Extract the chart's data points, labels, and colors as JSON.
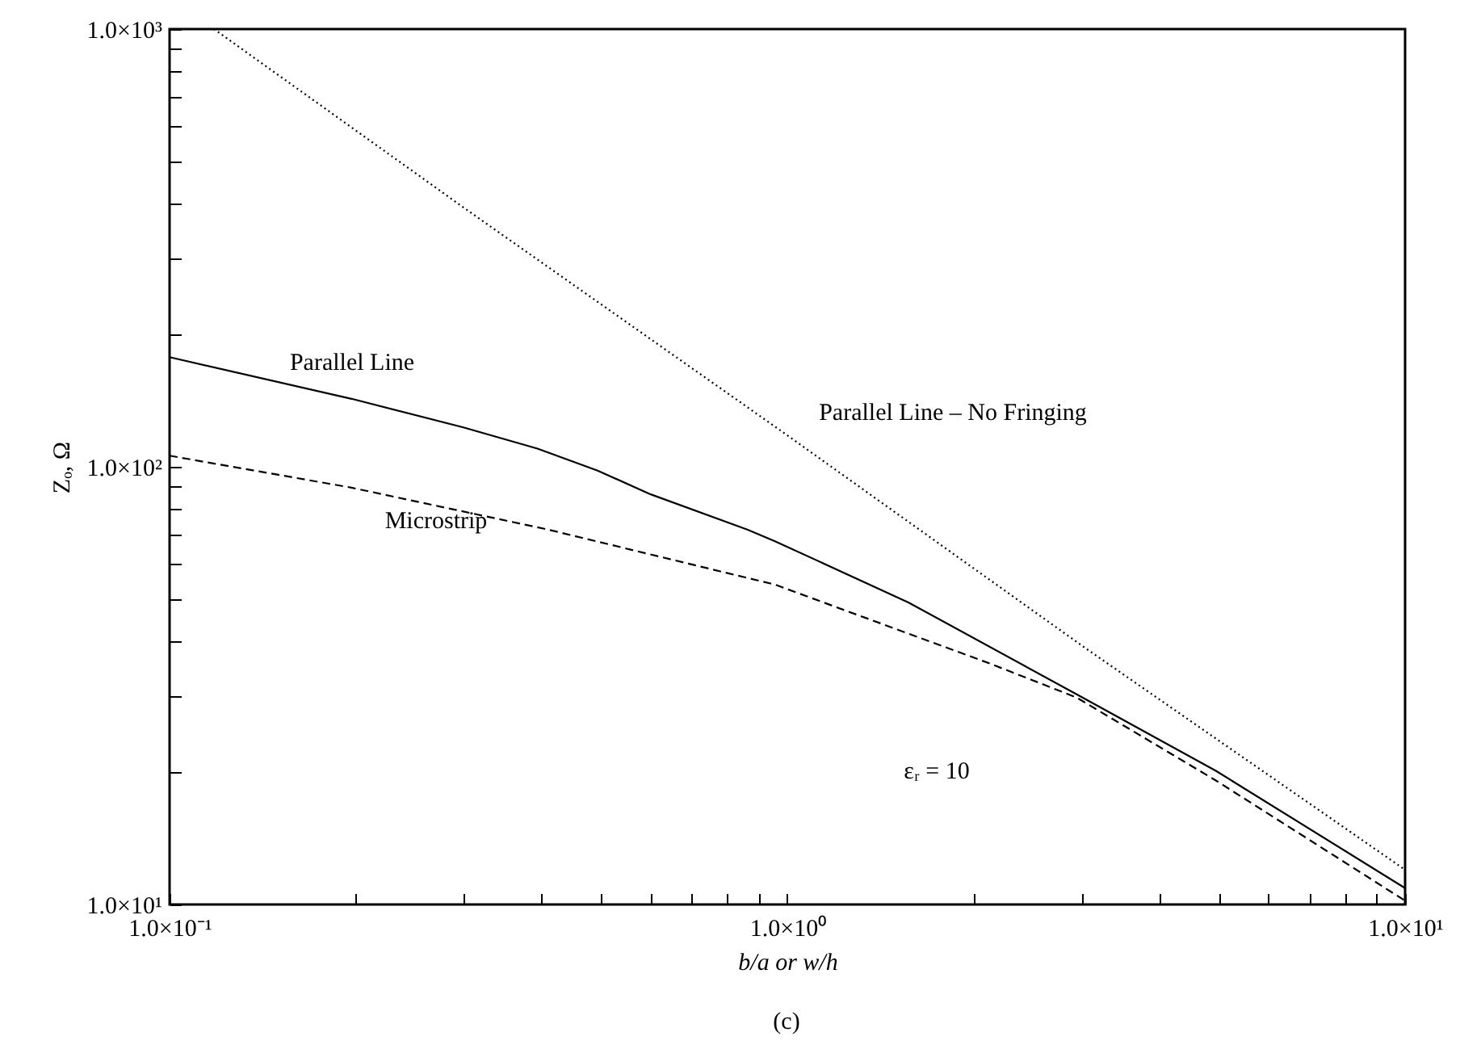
{
  "chart_data": {
    "type": "line",
    "xlabel": "b/a or w/h",
    "ylabel": "Zₒ, Ω",
    "log": "xy",
    "grid": false,
    "marker": "none",
    "xlim": [
      0.1,
      10
    ],
    "ylim": [
      10,
      1000
    ],
    "xticks": [
      {
        "value": 0.1,
        "label": "1.0×10⁻¹"
      },
      {
        "value": 0.2,
        "label": null
      },
      {
        "value": 0.3,
        "label": null
      },
      {
        "value": 0.4,
        "label": null
      },
      {
        "value": 0.5,
        "label": null
      },
      {
        "value": 0.6,
        "label": null
      },
      {
        "value": 0.7,
        "label": null
      },
      {
        "value": 0.8,
        "label": null
      },
      {
        "value": 0.9,
        "label": null
      },
      {
        "value": 1,
        "label": "1.0×10⁰"
      },
      {
        "value": 2,
        "label": null
      },
      {
        "value": 3,
        "label": null
      },
      {
        "value": 4,
        "label": null
      },
      {
        "value": 5,
        "label": null
      },
      {
        "value": 6,
        "label": null
      },
      {
        "value": 7,
        "label": null
      },
      {
        "value": 8,
        "label": null
      },
      {
        "value": 9,
        "label": null
      },
      {
        "value": 10,
        "label": "1.0×10¹"
      }
    ],
    "yticks": [
      {
        "value": 10,
        "label": "1.0×10¹"
      },
      {
        "value": 20,
        "label": null
      },
      {
        "value": 30,
        "label": null
      },
      {
        "value": 40,
        "label": null
      },
      {
        "value": 50,
        "label": null
      },
      {
        "value": 60,
        "label": null
      },
      {
        "value": 70,
        "label": null
      },
      {
        "value": 80,
        "label": null
      },
      {
        "value": 90,
        "label": null
      },
      {
        "value": 100,
        "label": "1.0×10²"
      },
      {
        "value": 200,
        "label": null
      },
      {
        "value": 300,
        "label": null
      },
      {
        "value": 400,
        "label": null
      },
      {
        "value": 500,
        "label": null
      },
      {
        "value": 600,
        "label": null
      },
      {
        "value": 700,
        "label": null
      },
      {
        "value": 800,
        "label": null
      },
      {
        "value": 900,
        "label": null
      },
      {
        "value": 1000,
        "label": "1.0×10³"
      }
    ],
    "series": [
      {
        "name": "Parallel Line – No Fringing",
        "color": "#000000",
        "line_style": "dotted",
        "x": [
          0.118,
          0.3,
          1,
          3,
          10
        ],
        "values": [
          1000,
          390,
          118,
          39,
          12
        ]
      },
      {
        "name": "Parallel Line",
        "color": "#000000",
        "line_style": "solid",
        "x": [
          0.1,
          0.197,
          0.299,
          0.394,
          0.493,
          0.601,
          0.863,
          0.955,
          1.57,
          2.94,
          4.94,
          10
        ],
        "values": [
          178,
          143,
          123,
          110,
          98,
          86.5,
          71.8,
          67.6,
          49,
          30.2,
          20.2,
          10.9
        ]
      },
      {
        "name": "Microstrip",
        "color": "#000000",
        "line_style": "dashed",
        "x": [
          0.1,
          0.197,
          0.411,
          0.955,
          2.13,
          2.94,
          4.94,
          10
        ],
        "values": [
          106,
          89.6,
          71.8,
          53.8,
          35.5,
          29.7,
          19.2,
          10.2
        ]
      }
    ],
    "annotations": [
      "εᵣ = 10",
      "(c)"
    ]
  }
}
